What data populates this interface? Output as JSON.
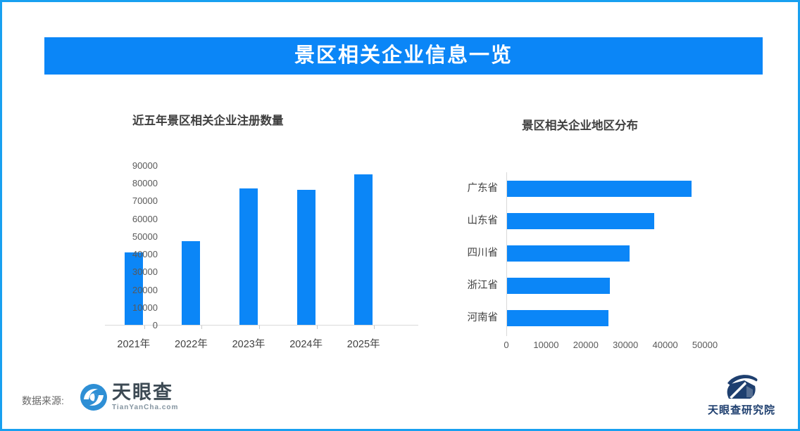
{
  "page_title": "景区相关企业信息一览",
  "colors": {
    "accent": "#0b86f7",
    "border": "#18a0f0",
    "axis_line": "#d9d9d9",
    "axis_text": "#595959",
    "title_text": "#3f3f3f"
  },
  "chart_data": [
    {
      "type": "bar",
      "orientation": "vertical",
      "title": "近五年景区相关企业注册数量",
      "categories": [
        "2021年",
        "2022年",
        "2023年",
        "2024年",
        "2025年"
      ],
      "values": [
        41000,
        47000,
        77000,
        76000,
        85000
      ],
      "ylim": [
        0,
        90000
      ],
      "ytick_interval": 10000,
      "grid": false,
      "legend": "none"
    },
    {
      "type": "bar",
      "orientation": "horizontal",
      "title": "景区相关企业地区分布",
      "categories": [
        "广东省",
        "山东省",
        "四川省",
        "浙江省",
        "河南省"
      ],
      "values": [
        46500,
        37000,
        30800,
        25800,
        25600
      ],
      "xlim": [
        0,
        50000
      ],
      "xtick_interval": 10000,
      "grid": false,
      "legend": "none"
    }
  ],
  "footer": {
    "source_label": "数据来源:",
    "tyc_name": "天眼查",
    "tyc_domain": "TianYanCha.com",
    "research_name": "天眼查研究院"
  }
}
